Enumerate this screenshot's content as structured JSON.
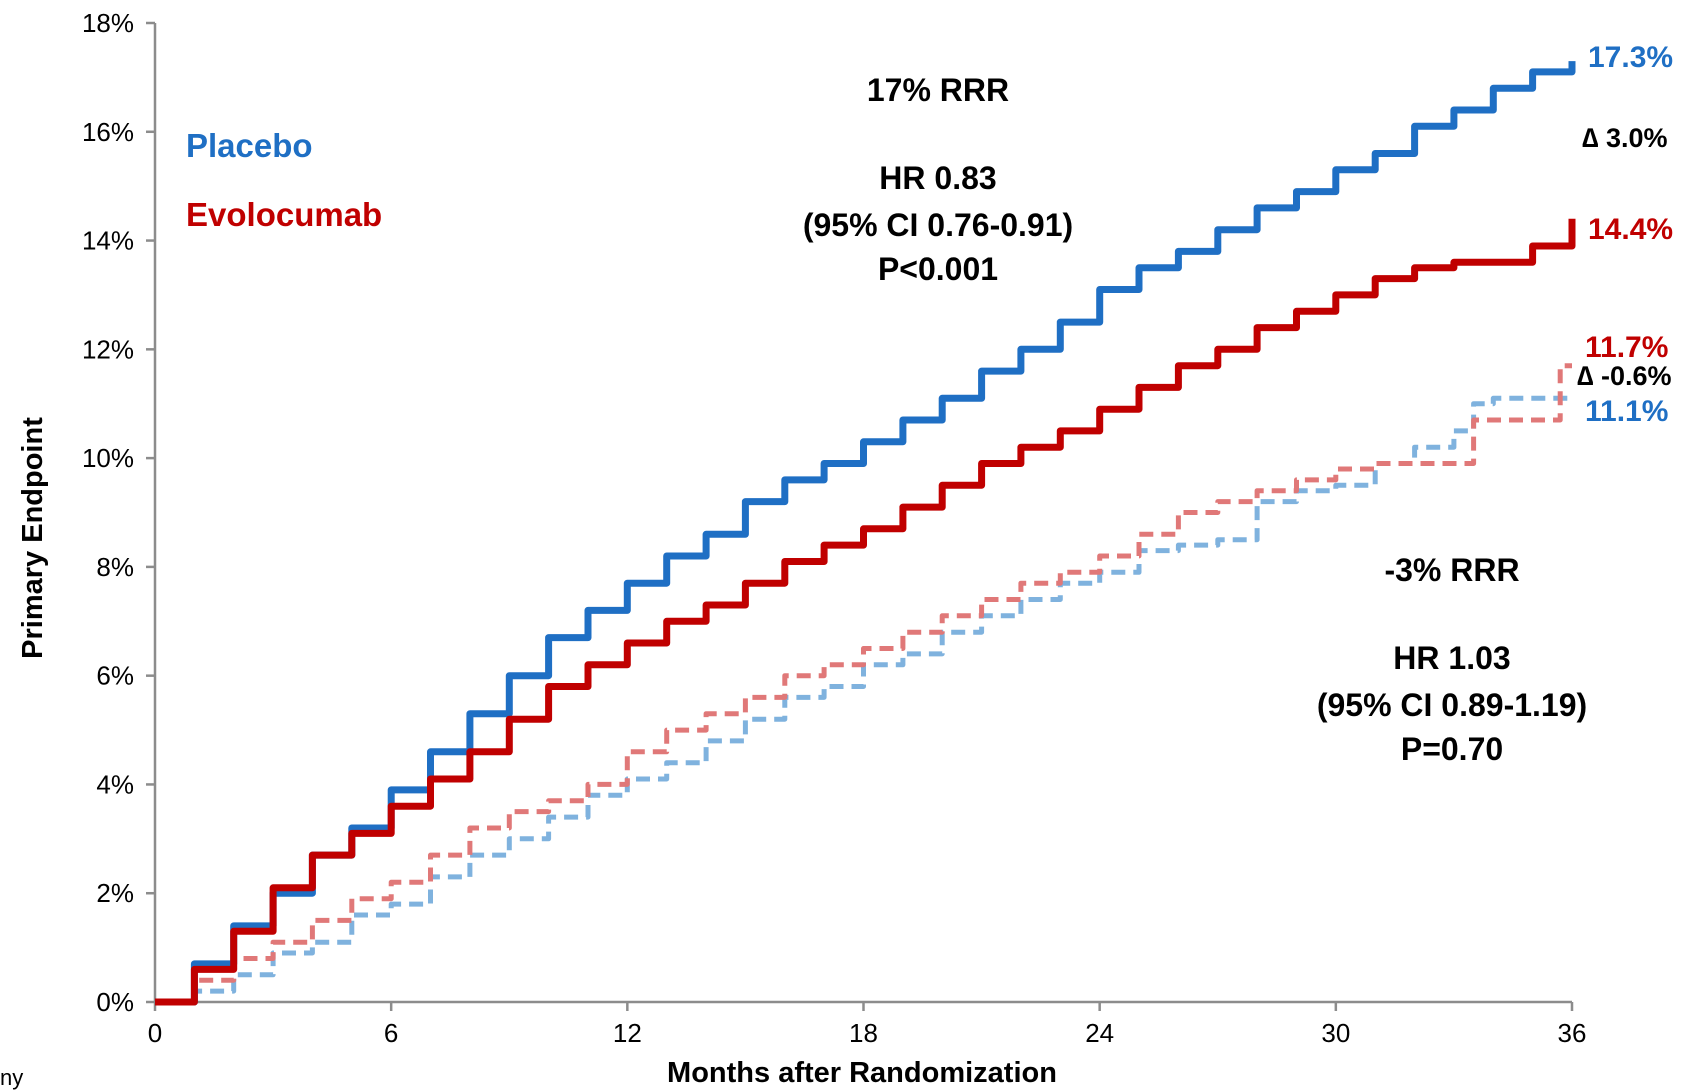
{
  "chart_data": {
    "type": "line",
    "xlabel": "Months after Randomization",
    "ylabel": "Primary Endpoint",
    "xlim": [
      0,
      36
    ],
    "ylim": [
      0,
      18
    ],
    "x_ticks": [
      "0",
      "6",
      "12",
      "18",
      "24",
      "30",
      "36"
    ],
    "y_ticks": [
      "0%",
      "2%",
      "4%",
      "6%",
      "8%",
      "10%",
      "12%",
      "14%",
      "16%",
      "18%"
    ],
    "grid": false,
    "legend": [
      {
        "label": "Placebo",
        "color": "#1F6FC4"
      },
      {
        "label": "Evolocumab",
        "color": "#C00000"
      }
    ],
    "series": [
      {
        "name": "Placebo",
        "style": "solid",
        "color": "#1F6FC4",
        "x": [
          0,
          1,
          2,
          3,
          4,
          5,
          6,
          7,
          8,
          9,
          10,
          11,
          12,
          13,
          14,
          15,
          16,
          17,
          18,
          19,
          20,
          21,
          22,
          23,
          24,
          25,
          26,
          27,
          28,
          29,
          30,
          31,
          32,
          33,
          34,
          35,
          36
        ],
        "y": [
          0,
          0.7,
          1.4,
          2.0,
          2.7,
          3.2,
          3.9,
          4.6,
          5.3,
          6.0,
          6.7,
          7.2,
          7.7,
          8.2,
          8.6,
          9.2,
          9.6,
          9.9,
          10.3,
          10.7,
          11.1,
          11.6,
          12.0,
          12.5,
          13.1,
          13.5,
          13.8,
          14.2,
          14.6,
          14.9,
          15.3,
          15.6,
          16.1,
          16.4,
          16.8,
          17.1,
          17.3
        ]
      },
      {
        "name": "Evolocumab",
        "style": "solid",
        "color": "#C00000",
        "x": [
          0,
          1,
          2,
          3,
          4,
          5,
          6,
          7,
          8,
          9,
          10,
          11,
          12,
          13,
          14,
          15,
          16,
          17,
          18,
          19,
          20,
          21,
          22,
          23,
          24,
          25,
          26,
          27,
          28,
          29,
          30,
          31,
          32,
          33,
          34,
          35,
          36
        ],
        "y": [
          0,
          0.6,
          1.3,
          2.1,
          2.7,
          3.1,
          3.6,
          4.1,
          4.6,
          5.2,
          5.8,
          6.2,
          6.6,
          7.0,
          7.3,
          7.7,
          8.1,
          8.4,
          8.7,
          9.1,
          9.5,
          9.9,
          10.2,
          10.5,
          10.9,
          11.3,
          11.7,
          12.0,
          12.4,
          12.7,
          13.0,
          13.3,
          13.5,
          13.6,
          13.6,
          13.9,
          14.4
        ]
      },
      {
        "name": "Placebo (dashed)",
        "style": "dashed",
        "color": "#7FB2DE",
        "x": [
          0,
          1,
          2,
          3,
          4,
          5,
          6,
          7,
          8,
          9,
          10,
          11,
          12,
          13,
          14,
          15,
          16,
          17,
          18,
          19,
          20,
          21,
          22,
          23,
          24,
          25,
          26,
          27,
          28,
          29,
          30,
          31,
          32,
          33,
          33.5,
          34,
          35,
          36
        ],
        "y": [
          0,
          0.2,
          0.5,
          0.9,
          1.1,
          1.6,
          1.8,
          2.3,
          2.7,
          3.0,
          3.4,
          3.8,
          4.1,
          4.4,
          4.8,
          5.2,
          5.6,
          5.8,
          6.2,
          6.4,
          6.8,
          7.1,
          7.4,
          7.7,
          7.9,
          8.3,
          8.4,
          8.5,
          9.2,
          9.4,
          9.5,
          9.9,
          10.2,
          10.5,
          11.0,
          11.1,
          11.1,
          11.1
        ]
      },
      {
        "name": "Evolocumab (dashed)",
        "style": "dashed",
        "color": "#E07878",
        "x": [
          0,
          1,
          2,
          3,
          4,
          5,
          6,
          7,
          8,
          9,
          10,
          11,
          12,
          13,
          14,
          15,
          16,
          17,
          18,
          19,
          20,
          21,
          22,
          23,
          24,
          25,
          26,
          27,
          28,
          29,
          30,
          31,
          32,
          33,
          33.5,
          34,
          35,
          35.7,
          36
        ],
        "y": [
          0,
          0.4,
          0.8,
          1.1,
          1.5,
          1.9,
          2.2,
          2.7,
          3.2,
          3.5,
          3.7,
          4.0,
          4.6,
          5.0,
          5.3,
          5.6,
          6.0,
          6.2,
          6.5,
          6.8,
          7.1,
          7.4,
          7.7,
          7.9,
          8.2,
          8.6,
          9.0,
          9.2,
          9.4,
          9.6,
          9.8,
          9.9,
          9.9,
          9.9,
          10.7,
          10.7,
          10.7,
          11.7,
          11.7
        ]
      }
    ],
    "annotations": {
      "top_block": [
        "17% RRR",
        "HR 0.83",
        "(95% CI 0.76-0.91)",
        "P<0.001"
      ],
      "bottom_block": [
        "-3% RRR",
        "HR 1.03",
        "(95% CI 0.89-1.19)",
        "P=0.70"
      ],
      "end_labels": [
        {
          "text": "17.3%",
          "color": "#1F6FC4"
        },
        {
          "text": "14.4%",
          "color": "#C00000"
        },
        {
          "text": "11.7%",
          "color": "#C00000"
        },
        {
          "text": "11.1%",
          "color": "#1F6FC4"
        }
      ],
      "deltas": [
        "∆ 3.0%",
        "∆ -0.6%"
      ]
    },
    "footer": "ny"
  }
}
